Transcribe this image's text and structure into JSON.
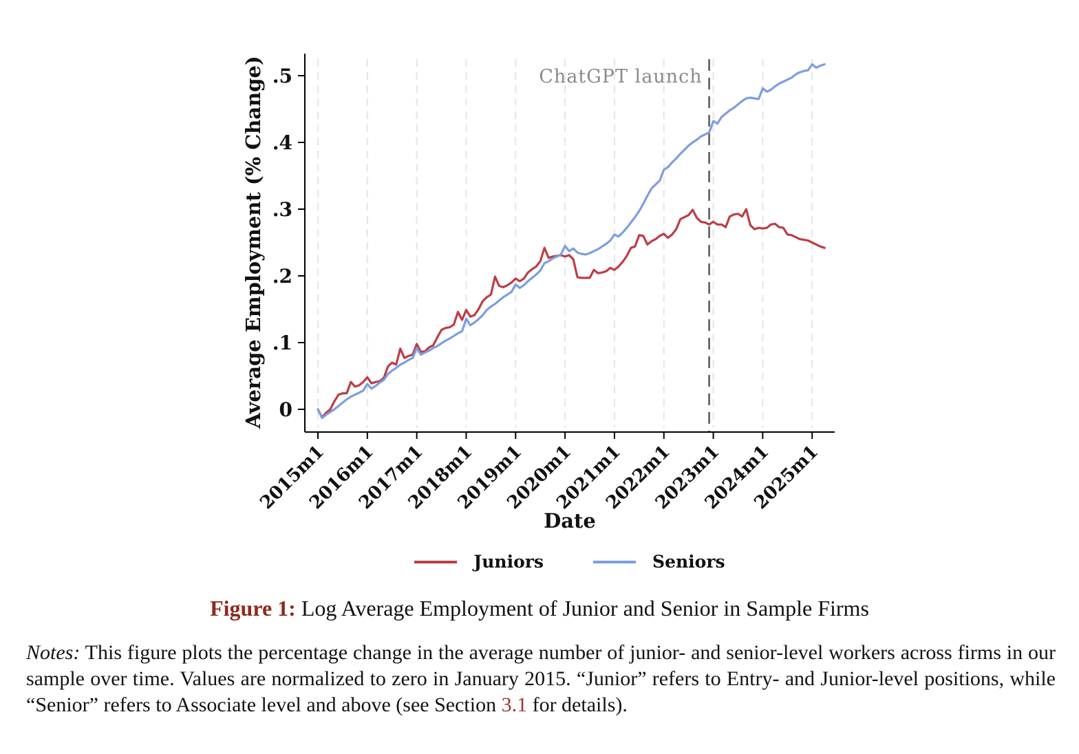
{
  "figure": {
    "caption_label": "Figure 1:",
    "caption_text": " Log Average Employment of Junior and Senior in Sample Firms",
    "notes_label": "Notes:",
    "notes_part1": " This figure plots the percentage change in the average number of junior- and senior-level workers across firms in our sample over time.  Values are normalized to zero in January 2015.  “Junior” refers to Entry- and Junior-level positions, while “Senior” refers to Associate level and above (see Section ",
    "notes_link": "3.1",
    "notes_part2": " for details)."
  },
  "chart_data": {
    "type": "line",
    "title": "",
    "xlabel": "Date",
    "ylabel": "Average Employment (% Change)",
    "x_monthly_start": "2015m1",
    "x_monthly_end": "2025m4",
    "x_tick_labels": [
      "2015m1",
      "2016m1",
      "2017m1",
      "2018m1",
      "2019m1",
      "2020m1",
      "2021m1",
      "2022m1",
      "2023m1",
      "2024m1",
      "2025m1"
    ],
    "y_ticks": [
      0,
      0.1,
      0.2,
      0.3,
      0.4,
      0.5
    ],
    "y_tick_labels": [
      "0",
      ".1",
      ".2",
      ".3",
      ".4",
      ".5"
    ],
    "ylim": [
      -0.03,
      0.535
    ],
    "grid": "vertical-dashed-per-year",
    "legend_position": "bottom-center",
    "annotation": {
      "label": "ChatGPT launch",
      "month": "2022m12",
      "line_style": "dashed-vertical"
    },
    "series": [
      {
        "name": "Juniors",
        "color": "#bd3d45",
        "values": [
          0,
          -0.012,
          -0.005,
          0,
          0.012,
          0.022,
          0.024,
          0.024,
          0.041,
          0.034,
          0.036,
          0.041,
          0.048,
          0.039,
          0.041,
          0.042,
          0.047,
          0.064,
          0.07,
          0.067,
          0.091,
          0.077,
          0.08,
          0.082,
          0.098,
          0.086,
          0.087,
          0.093,
          0.096,
          0.108,
          0.119,
          0.122,
          0.123,
          0.127,
          0.146,
          0.134,
          0.149,
          0.139,
          0.141,
          0.15,
          0.162,
          0.168,
          0.172,
          0.199,
          0.185,
          0.183,
          0.186,
          0.19,
          0.196,
          0.192,
          0.196,
          0.205,
          0.21,
          0.214,
          0.222,
          0.242,
          0.227,
          0.229,
          0.23,
          0.231,
          0.229,
          0.231,
          0.225,
          0.198,
          0.197,
          0.197,
          0.197,
          0.209,
          0.204,
          0.205,
          0.207,
          0.212,
          0.209,
          0.214,
          0.221,
          0.23,
          0.242,
          0.244,
          0.261,
          0.26,
          0.247,
          0.252,
          0.255,
          0.26,
          0.263,
          0.257,
          0.262,
          0.27,
          0.285,
          0.288,
          0.291,
          0.299,
          0.287,
          0.281,
          0.28,
          0.277,
          0.281,
          0.277,
          0.277,
          0.273,
          0.289,
          0.292,
          0.293,
          0.289,
          0.3,
          0.276,
          0.27,
          0.272,
          0.271,
          0.272,
          0.277,
          0.278,
          0.273,
          0.272,
          0.262,
          0.261,
          0.258,
          0.255,
          0.254,
          0.253,
          0.25,
          0.247,
          0.244,
          0.242
        ]
      },
      {
        "name": "Seniors",
        "color": "#7d9de2",
        "values": [
          0,
          -0.013,
          -0.008,
          -0.004,
          0,
          0.005,
          0.01,
          0.015,
          0.019,
          0.022,
          0.025,
          0.028,
          0.038,
          0.031,
          0.035,
          0.04,
          0.044,
          0.053,
          0.058,
          0.062,
          0.067,
          0.07,
          0.074,
          0.077,
          0.092,
          0.082,
          0.085,
          0.088,
          0.092,
          0.095,
          0.099,
          0.103,
          0.106,
          0.11,
          0.114,
          0.117,
          0.136,
          0.126,
          0.13,
          0.135,
          0.141,
          0.149,
          0.154,
          0.158,
          0.163,
          0.168,
          0.172,
          0.176,
          0.187,
          0.182,
          0.186,
          0.192,
          0.197,
          0.202,
          0.208,
          0.219,
          0.222,
          0.226,
          0.229,
          0.232,
          0.245,
          0.237,
          0.241,
          0.235,
          0.233,
          0.232,
          0.234,
          0.237,
          0.24,
          0.244,
          0.248,
          0.253,
          0.262,
          0.259,
          0.265,
          0.272,
          0.28,
          0.288,
          0.297,
          0.308,
          0.32,
          0.331,
          0.337,
          0.343,
          0.359,
          0.363,
          0.37,
          0.376,
          0.383,
          0.389,
          0.395,
          0.4,
          0.404,
          0.409,
          0.412,
          0.415,
          0.432,
          0.428,
          0.438,
          0.443,
          0.448,
          0.452,
          0.457,
          0.462,
          0.466,
          0.467,
          0.466,
          0.465,
          0.481,
          0.476,
          0.479,
          0.484,
          0.488,
          0.491,
          0.494,
          0.497,
          0.502,
          0.505,
          0.507,
          0.508,
          0.517,
          0.512,
          0.515,
          0.517
        ]
      }
    ],
    "style": {
      "grid_color": "#e5e5e5",
      "annotation_line_color": "#5c5c5c",
      "annotation_text_color": "#8a8a8a",
      "axis_color": "#000000"
    }
  }
}
